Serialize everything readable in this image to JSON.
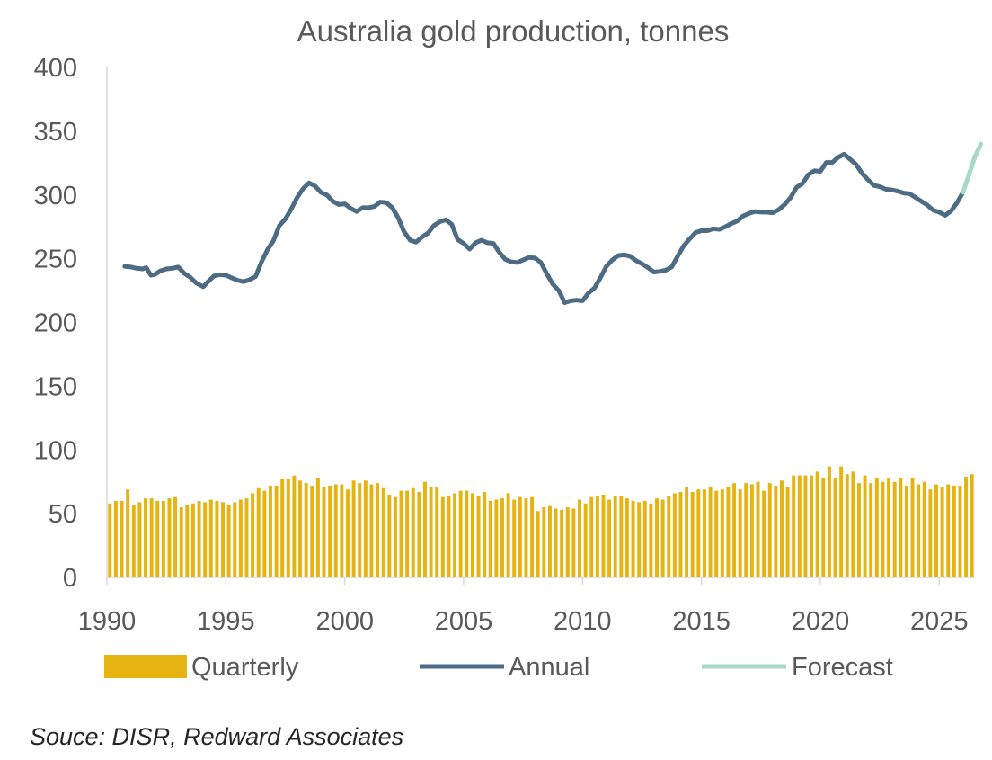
{
  "chart_data": {
    "type": "bar+line",
    "title": "Australia gold production, tonnes",
    "xlabel": "",
    "ylabel": "",
    "xlim": [
      1990,
      2026.5
    ],
    "ylim": [
      0,
      400
    ],
    "x_ticks": [
      1990,
      1995,
      2000,
      2005,
      2010,
      2015,
      2020,
      2025
    ],
    "y_ticks": [
      0,
      50,
      100,
      150,
      200,
      250,
      300,
      350,
      400
    ],
    "grid": false,
    "legend_position": "bottom",
    "colors": {
      "quarterly": "#E6B412",
      "annual": "#4D6B83",
      "forecast": "#A8D8C8",
      "axis": "#D9D9D9"
    },
    "series": [
      {
        "name": "Quarterly",
        "kind": "bar",
        "start": 1990.0,
        "step": 0.25,
        "values": [
          58,
          60,
          60,
          69,
          57,
          59,
          62,
          62,
          60,
          60,
          62,
          63,
          55,
          57,
          58,
          60,
          59,
          61,
          60,
          59,
          57,
          59,
          61,
          62,
          66,
          70,
          68,
          72,
          72,
          77,
          77,
          80,
          76,
          74,
          72,
          78,
          71,
          72,
          73,
          73,
          69,
          76,
          74,
          76,
          73,
          74,
          70,
          65,
          63,
          68,
          68,
          70,
          67,
          75,
          71,
          71,
          63,
          64,
          66,
          68,
          68,
          66,
          64,
          67,
          60,
          61,
          62,
          66,
          61,
          63,
          62,
          63,
          52,
          55,
          56,
          54,
          53,
          55,
          54,
          61,
          58,
          63,
          64,
          65,
          61,
          64,
          64,
          62,
          60,
          59,
          60,
          58,
          62,
          61,
          64,
          66,
          67,
          71,
          67,
          69,
          69,
          71,
          68,
          69,
          71,
          74,
          69,
          74,
          73,
          75,
          68,
          74,
          72,
          76,
          71,
          80,
          80,
          80,
          80,
          83,
          78,
          87,
          78,
          87,
          81,
          83,
          74,
          80,
          74,
          78,
          75,
          78,
          75,
          78,
          72,
          78,
          73,
          75,
          69,
          73,
          71,
          73,
          72,
          72,
          79,
          81
        ]
      },
      {
        "name": "Annual",
        "kind": "line",
        "points": [
          [
            1990.75,
            244
          ],
          [
            1991.0,
            243.5
          ],
          [
            1991.25,
            242.5
          ],
          [
            1991.5,
            242
          ],
          [
            1991.65,
            243
          ],
          [
            1991.85,
            237
          ],
          [
            1992.0,
            237.5
          ],
          [
            1992.25,
            240.5
          ],
          [
            1992.5,
            242
          ],
          [
            1992.75,
            242.5
          ],
          [
            1993.0,
            243.5
          ],
          [
            1993.25,
            238.5
          ],
          [
            1993.5,
            235.5
          ],
          [
            1993.75,
            231
          ],
          [
            1994.05,
            228
          ],
          [
            1994.25,
            232
          ],
          [
            1994.5,
            236.5
          ],
          [
            1994.75,
            237.5
          ],
          [
            1995.0,
            237
          ],
          [
            1995.25,
            235
          ],
          [
            1995.5,
            233
          ],
          [
            1995.75,
            232
          ],
          [
            1996.0,
            233.5
          ],
          [
            1996.25,
            236
          ],
          [
            1996.5,
            247.5
          ],
          [
            1996.75,
            257
          ],
          [
            1997.0,
            264
          ],
          [
            1997.25,
            276
          ],
          [
            1997.5,
            281
          ],
          [
            1997.75,
            289
          ],
          [
            1998.0,
            298
          ],
          [
            1998.25,
            305
          ],
          [
            1998.5,
            309.5
          ],
          [
            1998.75,
            307
          ],
          [
            1999.0,
            302
          ],
          [
            1999.25,
            300
          ],
          [
            1999.5,
            295
          ],
          [
            1999.75,
            292.5
          ],
          [
            2000.0,
            293
          ],
          [
            2000.25,
            289.5
          ],
          [
            2000.5,
            287
          ],
          [
            2000.75,
            290
          ],
          [
            2001.0,
            290
          ],
          [
            2001.25,
            291
          ],
          [
            2001.5,
            294.5
          ],
          [
            2001.75,
            294
          ],
          [
            2002.0,
            290
          ],
          [
            2002.25,
            282
          ],
          [
            2002.5,
            271
          ],
          [
            2002.75,
            264.5
          ],
          [
            2003.0,
            263
          ],
          [
            2003.25,
            267
          ],
          [
            2003.5,
            270
          ],
          [
            2003.75,
            276
          ],
          [
            2004.0,
            279
          ],
          [
            2004.25,
            280.5
          ],
          [
            2004.5,
            277
          ],
          [
            2004.75,
            265
          ],
          [
            2005.0,
            262
          ],
          [
            2005.25,
            257.5
          ],
          [
            2005.5,
            262.5
          ],
          [
            2005.75,
            264.5
          ],
          [
            2006.0,
            262.5
          ],
          [
            2006.25,
            262
          ],
          [
            2006.5,
            255
          ],
          [
            2006.75,
            249.5
          ],
          [
            2007.0,
            247.5
          ],
          [
            2007.25,
            247
          ],
          [
            2007.5,
            249
          ],
          [
            2007.75,
            251
          ],
          [
            2008.0,
            250.5
          ],
          [
            2008.25,
            247
          ],
          [
            2008.5,
            238
          ],
          [
            2008.75,
            230
          ],
          [
            2009.0,
            225
          ],
          [
            2009.25,
            215.5
          ],
          [
            2009.5,
            217
          ],
          [
            2009.75,
            217.5
          ],
          [
            2010.0,
            217
          ],
          [
            2010.25,
            223
          ],
          [
            2010.5,
            227
          ],
          [
            2010.75,
            235
          ],
          [
            2011.0,
            244
          ],
          [
            2011.25,
            249
          ],
          [
            2011.5,
            252.5
          ],
          [
            2011.75,
            253
          ],
          [
            2012.0,
            252
          ],
          [
            2012.25,
            248.5
          ],
          [
            2012.5,
            246
          ],
          [
            2012.75,
            243
          ],
          [
            2013.0,
            239.5
          ],
          [
            2013.25,
            240
          ],
          [
            2013.5,
            241
          ],
          [
            2013.75,
            243.5
          ],
          [
            2014.0,
            252
          ],
          [
            2014.25,
            260
          ],
          [
            2014.5,
            265.5
          ],
          [
            2014.75,
            270.5
          ],
          [
            2015.0,
            272
          ],
          [
            2015.25,
            272
          ],
          [
            2015.5,
            273.5
          ],
          [
            2015.75,
            273
          ],
          [
            2016.0,
            275
          ],
          [
            2016.25,
            277.5
          ],
          [
            2016.5,
            279.5
          ],
          [
            2016.75,
            283.5
          ],
          [
            2017.0,
            285.5
          ],
          [
            2017.25,
            287
          ],
          [
            2017.5,
            286.5
          ],
          [
            2017.75,
            286.5
          ],
          [
            2018.0,
            286
          ],
          [
            2018.25,
            288.5
          ],
          [
            2018.5,
            292.5
          ],
          [
            2018.75,
            298
          ],
          [
            2019.0,
            306
          ],
          [
            2019.25,
            309
          ],
          [
            2019.5,
            316
          ],
          [
            2019.75,
            319
          ],
          [
            2020.0,
            318.5
          ],
          [
            2020.25,
            325.5
          ],
          [
            2020.5,
            325.5
          ],
          [
            2020.75,
            329.5
          ],
          [
            2021.0,
            332
          ],
          [
            2021.25,
            328
          ],
          [
            2021.5,
            324
          ],
          [
            2021.75,
            317
          ],
          [
            2022.0,
            312
          ],
          [
            2022.25,
            307.5
          ],
          [
            2022.5,
            306.5
          ],
          [
            2022.75,
            304.5
          ],
          [
            2023.0,
            304
          ],
          [
            2023.25,
            303
          ],
          [
            2023.5,
            301.5
          ],
          [
            2023.75,
            301
          ],
          [
            2024.0,
            298
          ],
          [
            2024.25,
            295
          ],
          [
            2024.5,
            292
          ],
          [
            2024.75,
            288
          ],
          [
            2025.0,
            286.5
          ],
          [
            2025.25,
            284
          ],
          [
            2025.5,
            287.5
          ],
          [
            2025.75,
            294
          ],
          [
            2026.0,
            302
          ]
        ]
      },
      {
        "name": "Forecast",
        "kind": "line",
        "points": [
          [
            2026.0,
            302
          ],
          [
            2026.25,
            316
          ],
          [
            2026.5,
            330
          ],
          [
            2026.75,
            340
          ]
        ]
      }
    ]
  },
  "source_note": "Souce: DISR, Redward Associates"
}
